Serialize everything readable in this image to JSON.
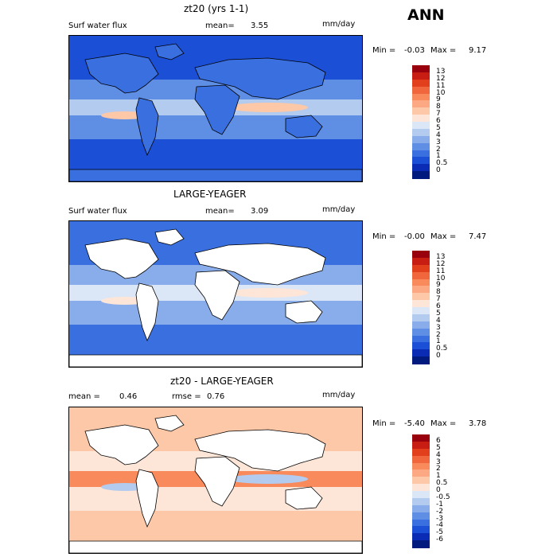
{
  "annual_label": "ANN",
  "panels": [
    {
      "title": "zt20 (yrs 1-1)",
      "left_label": "Surf water flux",
      "mean_label": "mean=",
      "mean_value": "3.55",
      "units": "mm/day",
      "min_label": "Min =",
      "min_value": "-0.03",
      "max_label": "Max =",
      "max_value": "9.17",
      "colorbar": {
        "ticks": [
          "13",
          "12",
          "11",
          "10",
          "9",
          "8",
          "7",
          "6",
          "5",
          "4",
          "3",
          "2",
          "1",
          "0.5",
          "0"
        ],
        "colors": [
          "#99000d",
          "#c81d12",
          "#e2401d",
          "#f0673e",
          "#f98a5b",
          "#fca882",
          "#fdc8a8",
          "#fde6d8",
          "#dbe6f7",
          "#b3cbee",
          "#89adea",
          "#5f8ee5",
          "#3a6fe0",
          "#1a4fd6",
          "#0a2cb4",
          "#001a7e"
        ]
      },
      "map_palette": {
        "ocean_deep": "#1a4fd6",
        "ocean_mid": "#5f8ee5",
        "ocean_light": "#b3cbee",
        "highlight": "#fdc8a8",
        "land": "#3a6fe0"
      }
    },
    {
      "title": "LARGE-YEAGER",
      "left_label": "Surf water flux",
      "mean_label": "mean=",
      "mean_value": "3.09",
      "units": "mm/day",
      "min_label": "Min =",
      "min_value": "-0.00",
      "max_label": "Max =",
      "max_value": "7.47",
      "colorbar": {
        "ticks": [
          "13",
          "12",
          "11",
          "10",
          "9",
          "8",
          "7",
          "6",
          "5",
          "4",
          "3",
          "2",
          "1",
          "0.5",
          "0"
        ],
        "colors": [
          "#99000d",
          "#c81d12",
          "#e2401d",
          "#f0673e",
          "#f98a5b",
          "#fca882",
          "#fdc8a8",
          "#fde6d8",
          "#dbe6f7",
          "#b3cbee",
          "#89adea",
          "#5f8ee5",
          "#3a6fe0",
          "#1a4fd6",
          "#0a2cb4",
          "#001a7e"
        ]
      },
      "map_palette": {
        "ocean_deep": "#3a6fe0",
        "ocean_mid": "#89adea",
        "ocean_light": "#dbe6f7",
        "highlight": "#fde6d8",
        "land": "#ffffff"
      }
    },
    {
      "title": "zt20 - LARGE-YEAGER",
      "left_label": "mean =",
      "left_value": "0.46",
      "rmse_label": "rmse =",
      "rmse_value": "0.76",
      "units": "mm/day",
      "min_label": "Min =",
      "min_value": "-5.40",
      "max_label": "Max =",
      "max_value": "3.78",
      "colorbar": {
        "ticks": [
          "6",
          "5",
          "4",
          "3",
          "2",
          "1",
          "0.5",
          "0",
          "-0.5",
          "-1",
          "-2",
          "-3",
          "-4",
          "-5",
          "-6"
        ],
        "colors": [
          "#99000d",
          "#c81d12",
          "#e2401d",
          "#f0673e",
          "#f98a5b",
          "#fca882",
          "#fdc8a8",
          "#fde6d8",
          "#dbe6f7",
          "#b3cbee",
          "#89adea",
          "#5f8ee5",
          "#3a6fe0",
          "#1a4fd6",
          "#0a2cb4",
          "#001a7e"
        ]
      },
      "map_palette": {
        "ocean_deep": "#fdc8a8",
        "ocean_mid": "#fde6d8",
        "ocean_light": "#f98a5b",
        "highlight": "#b3cbee",
        "land": "#ffffff"
      }
    }
  ]
}
